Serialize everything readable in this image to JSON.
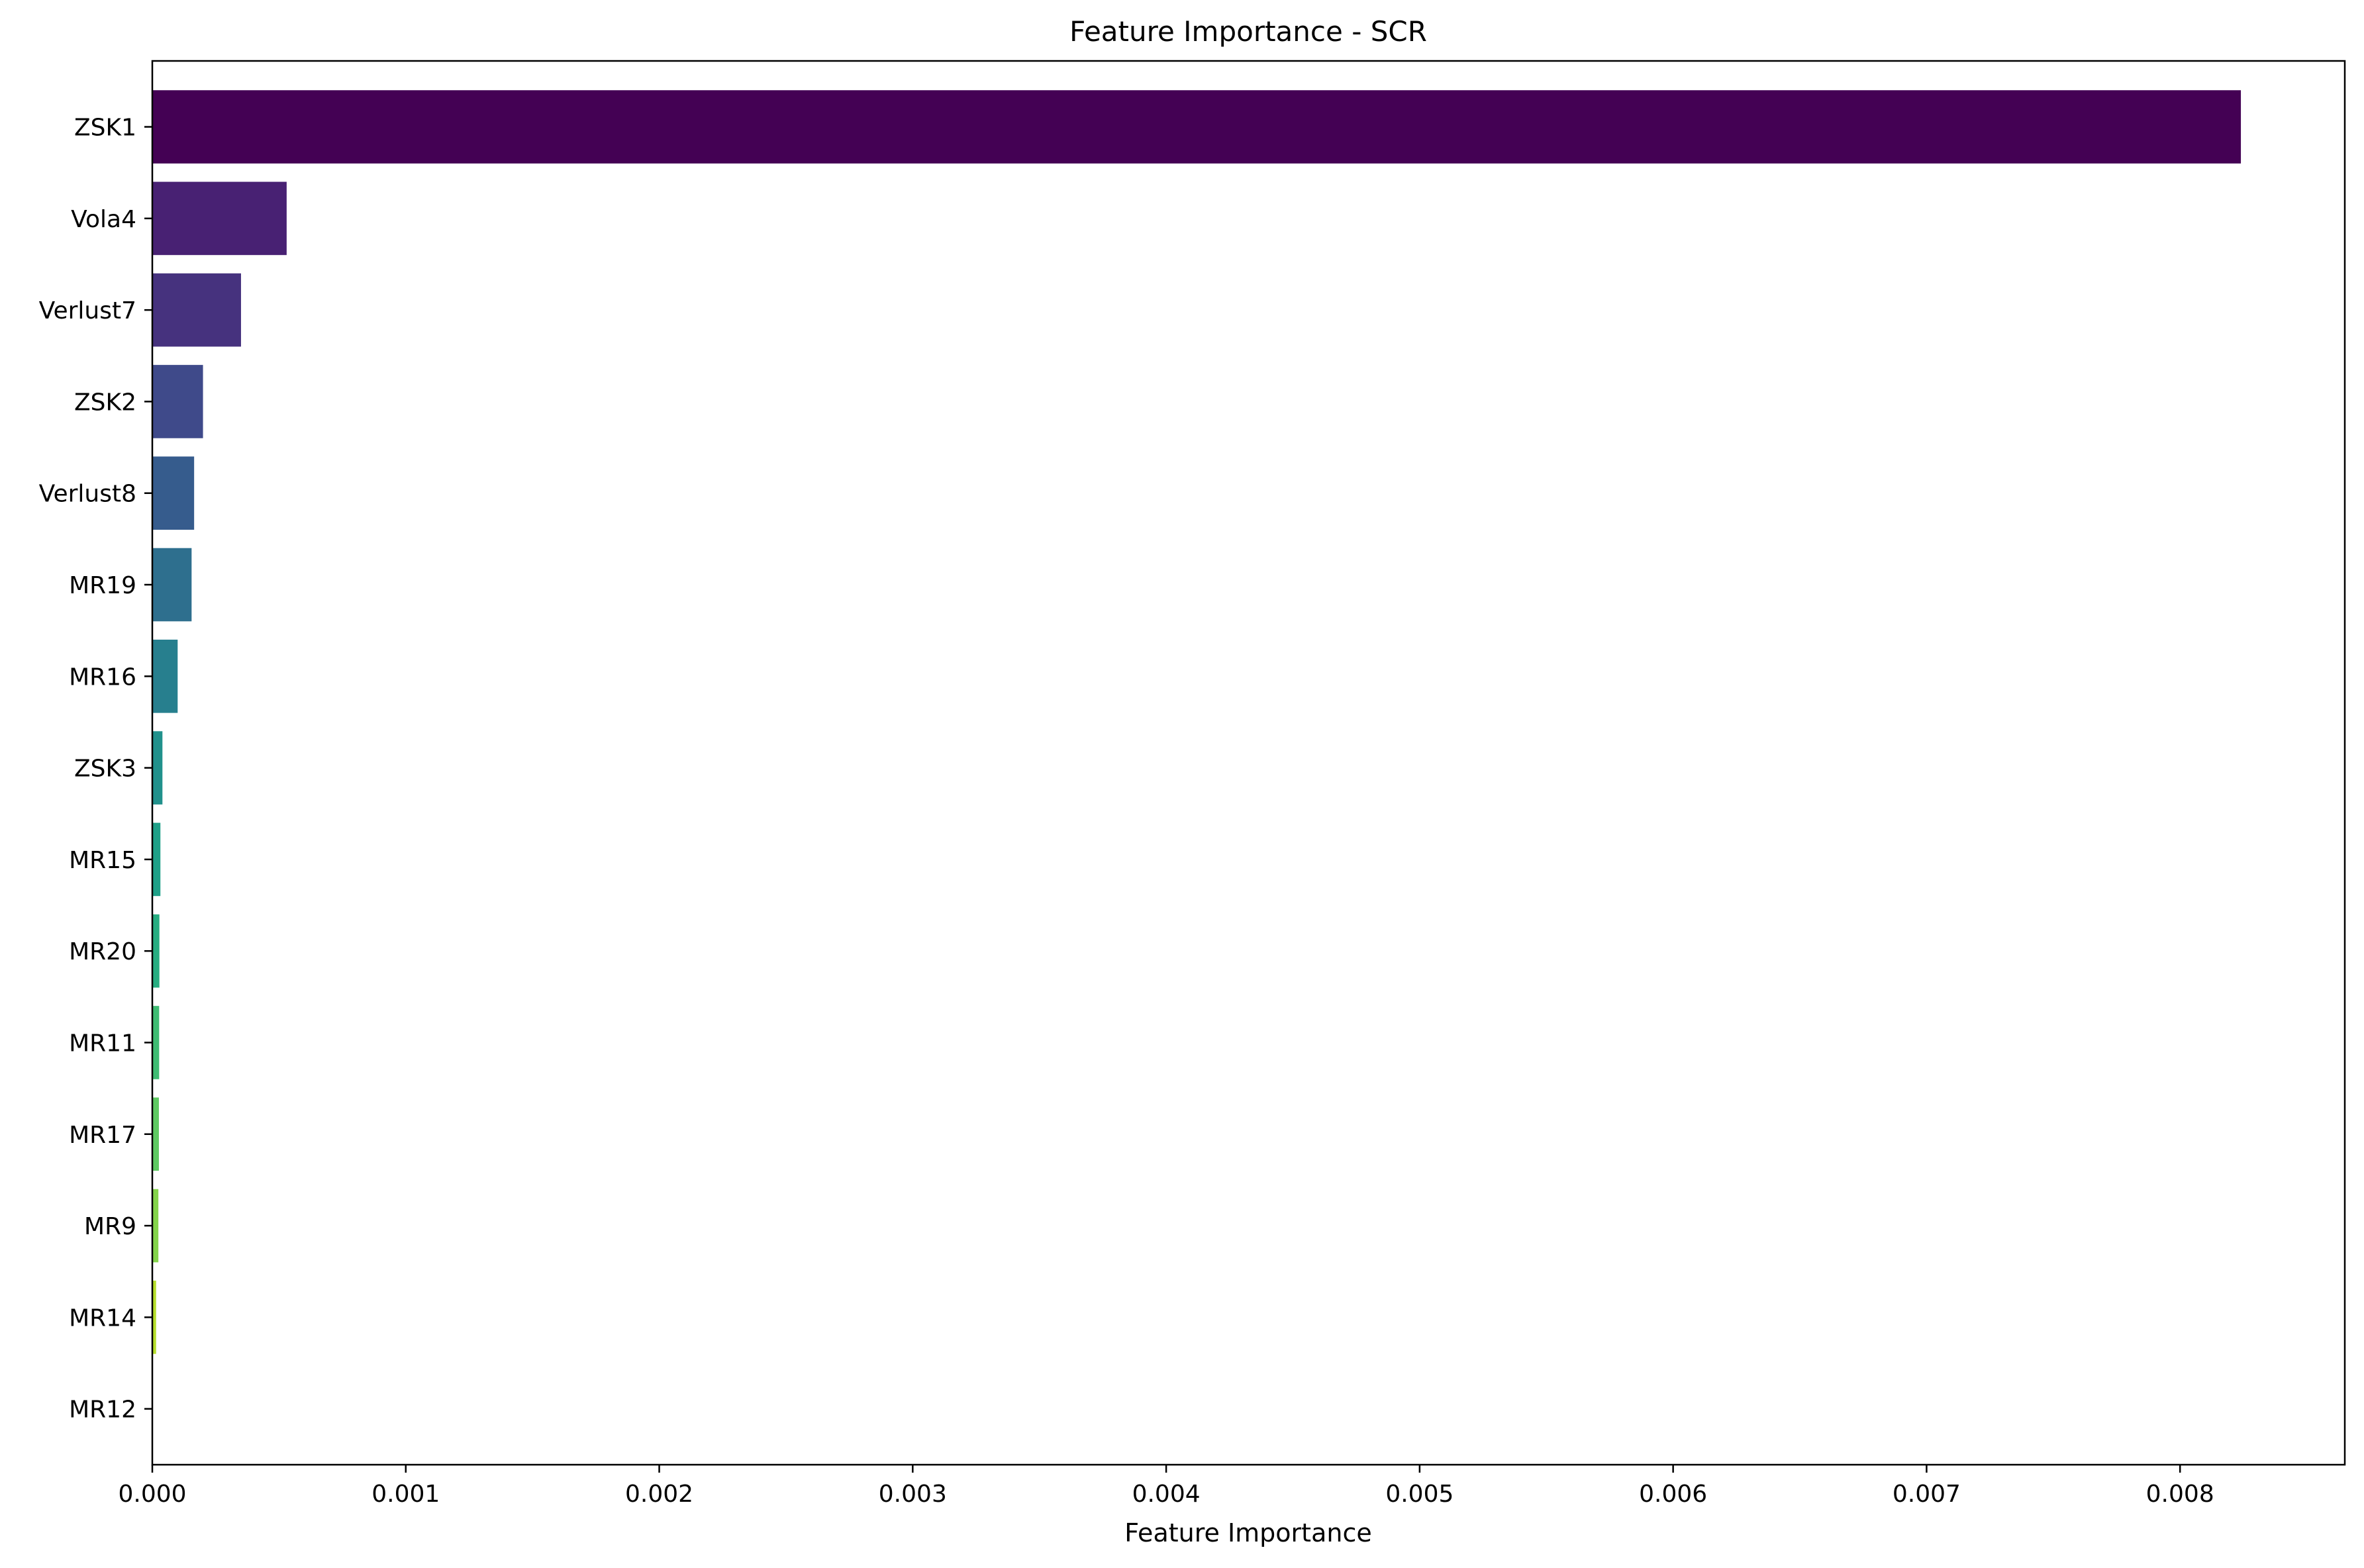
{
  "chart_data": {
    "type": "bar",
    "orientation": "horizontal",
    "title": "Feature Importance - SCR",
    "xlabel": "Feature Importance",
    "ylabel": "",
    "xlim": [
      0,
      0.00865
    ],
    "x_ticks": [
      "0.000",
      "0.001",
      "0.002",
      "0.003",
      "0.004",
      "0.005",
      "0.006",
      "0.007",
      "0.008"
    ],
    "grid": false,
    "colormap": "viridis",
    "categories": [
      "ZSK1",
      "Vola4",
      "Verlust7",
      "ZSK2",
      "Verlust8",
      "MR19",
      "MR16",
      "ZSK3",
      "MR15",
      "MR20",
      "MR11",
      "MR17",
      "MR9",
      "MR14",
      "MR12"
    ],
    "values": [
      0.00824,
      0.00053,
      0.00035,
      0.0002,
      0.000165,
      0.000155,
      0.0001,
      4e-05,
      3.2e-05,
      2.8e-05,
      2.7e-05,
      2.6e-05,
      2.4e-05,
      1.5e-05,
      0.0
    ],
    "colors": [
      "#440154",
      "#482173",
      "#46327e",
      "#3f4a8a",
      "#365c8d",
      "#2e6f8e",
      "#277f8e",
      "#21918c",
      "#1fa088",
      "#27ad81",
      "#3fbc73",
      "#5ec962",
      "#84d44b",
      "#b5de2b",
      "#fde725"
    ]
  }
}
